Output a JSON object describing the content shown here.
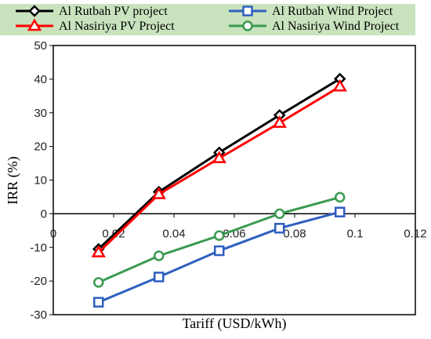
{
  "chart_data": {
    "type": "line",
    "title": "",
    "xlabel": "Tariff (USD/kWh)",
    "ylabel": "IRR (%)",
    "xlim": [
      0,
      0.12
    ],
    "ylim": [
      -30,
      50
    ],
    "xticks": [
      "0",
      "0.02",
      "0.04",
      "0.06",
      "0.08",
      "0.1",
      "0.12"
    ],
    "yticks": [
      "-30",
      "-20",
      "-10",
      "0",
      "10",
      "20",
      "30",
      "40",
      "50"
    ],
    "grid": false,
    "legend_position": "top",
    "x": [
      0.015,
      0.035,
      0.055,
      0.075,
      0.095
    ],
    "series": [
      {
        "name": "Al Rutbah PV project",
        "values": [
          -10.5,
          6.5,
          18.2,
          29.3,
          40.1
        ],
        "color": "#000000",
        "marker": "diamond"
      },
      {
        "name": "Al Rutbah Wind Project",
        "values": [
          -26.3,
          -18.8,
          -11.0,
          -4.3,
          0.5
        ],
        "color": "#2f5fbf",
        "marker": "square"
      },
      {
        "name": "Al Nasiriya PV Project",
        "values": [
          -11.5,
          5.8,
          16.5,
          27.0,
          37.8
        ],
        "color": "#ff0000",
        "marker": "triangle"
      },
      {
        "name": "Al Nasiriya Wind Project",
        "values": [
          -20.4,
          -12.5,
          -6.5,
          0.0,
          4.9
        ],
        "color": "#3a9a50",
        "marker": "circle"
      }
    ]
  }
}
